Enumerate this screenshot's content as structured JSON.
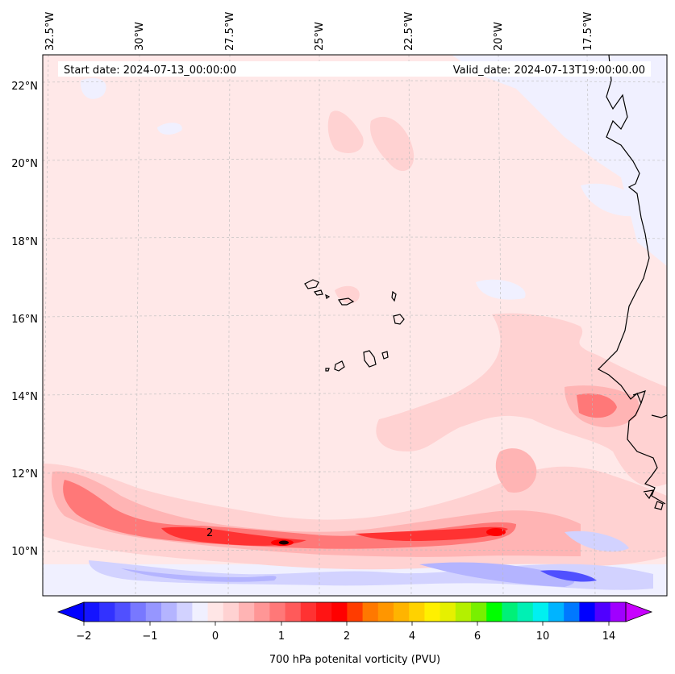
{
  "chart_data": {
    "type": "filled-contour-map",
    "start_label": "Start date: 2024-07-13_00:00:00",
    "valid_label": "Valid_date: 2024-07-13T19:00:00.00",
    "colorbar_label": "700 hPa potenital vorticity (PVU)",
    "lon_ticks": [
      "32.5°W",
      "30°W",
      "27.5°W",
      "25°W",
      "22.5°W",
      "20°W",
      "17.5°W"
    ],
    "lat_ticks": [
      "22°N",
      "20°N",
      "18°N",
      "16°N",
      "14°N",
      "12°N",
      "10°N"
    ],
    "colorbar_ticks": [
      "−2",
      "−1",
      "0",
      "1",
      "2",
      "4",
      "6",
      "10",
      "14"
    ],
    "contour_label": "2",
    "colorbar_colors": [
      "#1414ff",
      "#3232ff",
      "#5050ff",
      "#7878ff",
      "#9696ff",
      "#b4b4ff",
      "#d2d2ff",
      "#f0f0ff",
      "#ffe6e6",
      "#ffd2d2",
      "#ffb4b4",
      "#ff9696",
      "#ff7878",
      "#ff5a5a",
      "#ff3232",
      "#ff1414",
      "#ff0000",
      "#ff3c00",
      "#ff7800",
      "#ff9600",
      "#ffb400",
      "#ffd200",
      "#fff000",
      "#e6f000",
      "#b4f000",
      "#78f000",
      "#00ff00",
      "#00f078",
      "#00f0b4",
      "#00f0f0",
      "#00b4ff",
      "#0078ff",
      "#0000ff",
      "#5000ff",
      "#a000ff"
    ],
    "colorbar_extend_min_color": "#0000ff",
    "colorbar_extend_max_color": "#c800ff",
    "background_color": "#ffe8e8"
  }
}
